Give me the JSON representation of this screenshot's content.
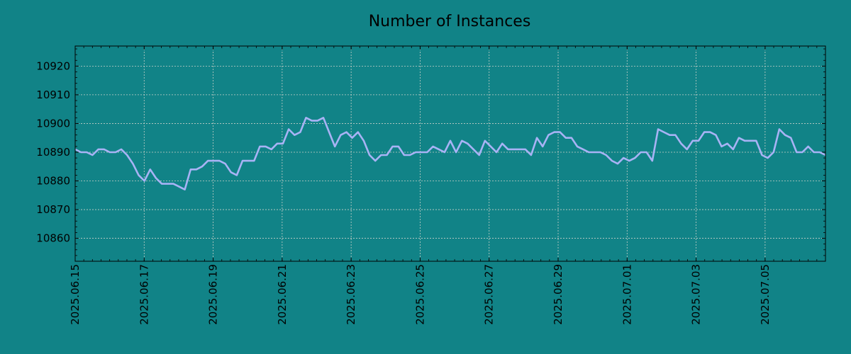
{
  "chart_data": {
    "type": "line",
    "title": "Number of Instances",
    "xlabel": "",
    "ylabel": "",
    "x_start": "2025-06-15",
    "x_end": "2025-07-06",
    "xlim": [
      "2025-06-15",
      "2025-07-06T18:00"
    ],
    "ylim": [
      10852,
      10927
    ],
    "y_ticks": [
      10860,
      10870,
      10880,
      10890,
      10900,
      10910,
      10920
    ],
    "x_ticks": [
      "2025.06.15",
      "2025.06.17",
      "2025.06.19",
      "2025.06.21",
      "2025.06.23",
      "2025.06.25",
      "2025.06.27",
      "2025.06.29",
      "2025.07.01",
      "2025.07.03",
      "2025.07.05"
    ],
    "grid": true,
    "legend": "none",
    "colors": {
      "background": "#118387",
      "line": "#a8b3f5",
      "grid": "#c8d0c8",
      "axis": "#000000"
    },
    "series": [
      {
        "values": [
          10891,
          10890,
          10890,
          10889,
          10891,
          10891,
          10890,
          10890,
          10891,
          10889,
          10886,
          10882,
          10880,
          10884,
          10881,
          10879,
          10879,
          10879,
          10878,
          10877,
          10884,
          10884,
          10885,
          10887,
          10887,
          10887,
          10886,
          10883,
          10882,
          10887,
          10887,
          10887,
          10892,
          10892,
          10891,
          10893,
          10893,
          10898,
          10896,
          10897,
          10902,
          10901,
          10901,
          10902,
          10897,
          10892,
          10896,
          10897,
          10895,
          10897,
          10894,
          10889,
          10887,
          10889,
          10889,
          10892,
          10892,
          10889,
          10889,
          10890,
          10890,
          10890,
          10892,
          10891,
          10890,
          10894,
          10890,
          10894,
          10893,
          10891,
          10889,
          10894,
          10892,
          10890,
          10893,
          10891,
          10891,
          10891,
          10891,
          10889,
          10895,
          10892,
          10896,
          10897,
          10897,
          10895,
          10895,
          10892,
          10891,
          10890,
          10890,
          10890,
          10889,
          10887,
          10886,
          10888,
          10887,
          10888,
          10890,
          10890,
          10887,
          10898,
          10897,
          10896,
          10896,
          10893,
          10891,
          10894,
          10894,
          10897,
          10897,
          10896,
          10892,
          10893,
          10891,
          10895,
          10894,
          10894,
          10894,
          10889,
          10888,
          10890,
          10898,
          10896,
          10895,
          10890,
          10890,
          10892,
          10890,
          10890,
          10889
        ]
      }
    ]
  }
}
